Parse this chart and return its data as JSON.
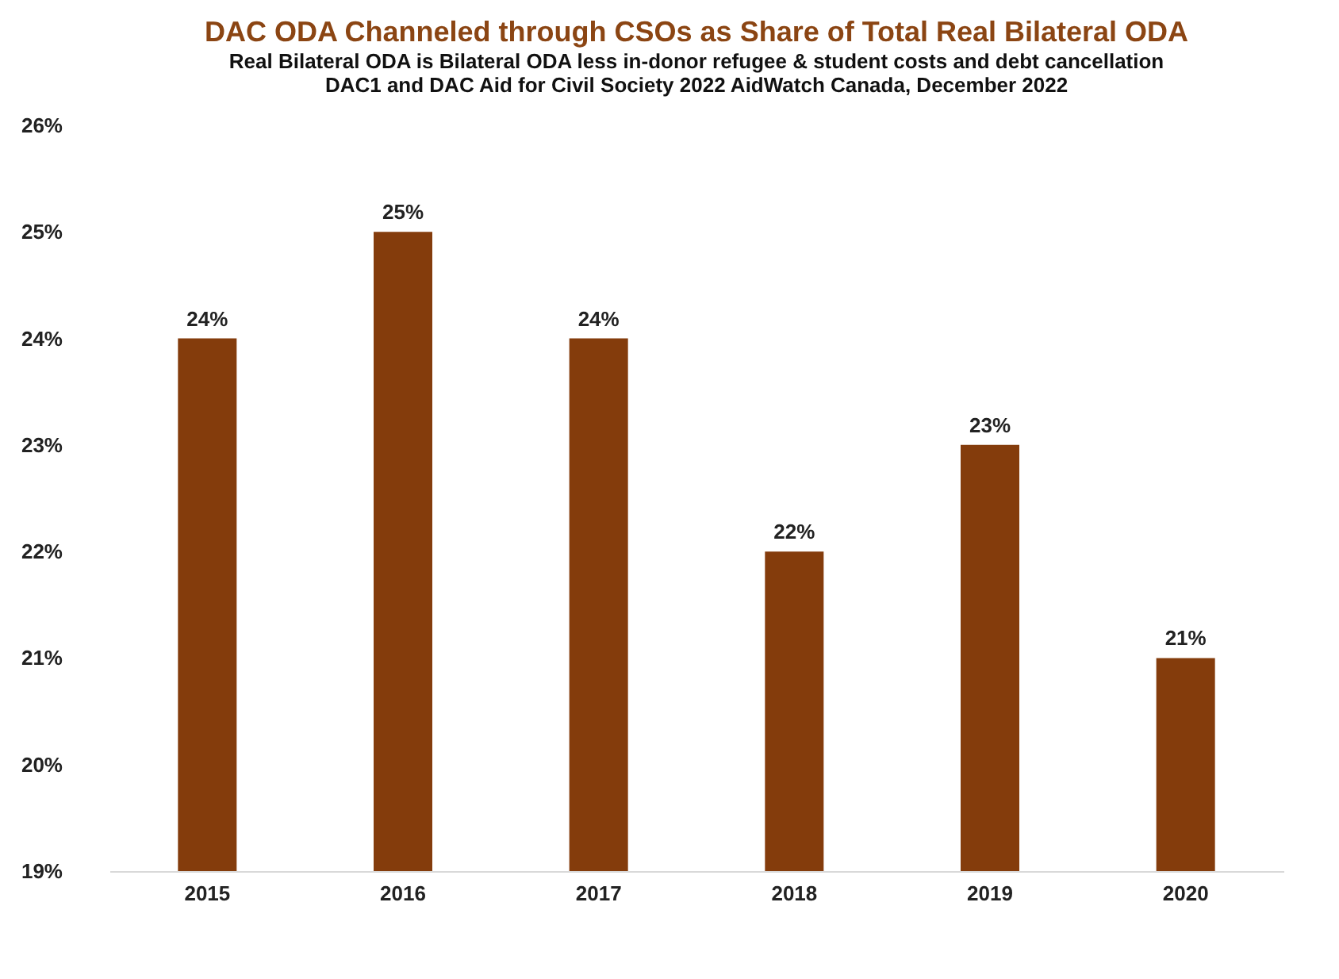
{
  "chart_data": {
    "type": "bar",
    "title": "DAC ODA Channeled through CSOs as Share of Total Real Bilateral ODA",
    "subtitle": [
      "Real Bilateral ODA is Bilateral ODA less in-donor  refugee & student costs and debt cancellation",
      "DAC1 and DAC Aid for Civil Society 2022     AidWatch Canada, December 2022"
    ],
    "categories": [
      "2015",
      "2016",
      "2017",
      "2018",
      "2019",
      "2020"
    ],
    "values": [
      24,
      25,
      24,
      22,
      23,
      21
    ],
    "value_labels": [
      "24%",
      "25%",
      "24%",
      "22%",
      "23%",
      "21%"
    ],
    "color": "#843c0c",
    "ylim": [
      19,
      26
    ],
    "yticks": [
      {
        "value": 19,
        "label": "19%"
      },
      {
        "value": 20,
        "label": "20%"
      },
      {
        "value": 21,
        "label": "21%"
      },
      {
        "value": 22,
        "label": "22%"
      },
      {
        "value": 23,
        "label": "23%"
      },
      {
        "value": 24,
        "label": "24%"
      },
      {
        "value": 25,
        "label": "25%"
      },
      {
        "value": 26,
        "label": "26%"
      }
    ],
    "grid": false
  }
}
